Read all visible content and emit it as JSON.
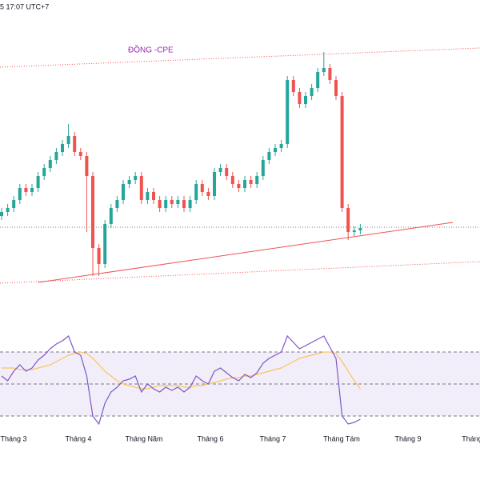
{
  "chart_data": {
    "type": "candlestick",
    "top_text": "5 17:07 UTC+7",
    "annotation": "ĐỒNG -CPE",
    "x_labels": [
      "Tháng 3",
      "Tháng 4",
      "Tháng Năm",
      "Tháng 6",
      "Tháng 7",
      "Tháng Tám",
      "Tháng 9",
      "Tháng"
    ],
    "ylim": [
      0,
      400
    ],
    "up_color": "#26a69a",
    "down_color": "#ef5350",
    "open": [
      130,
      135,
      140,
      150,
      165,
      160,
      165,
      180,
      190,
      200,
      210,
      220,
      230,
      210,
      205,
      180,
      90,
      70,
      120,
      140,
      150,
      170,
      175,
      180,
      150,
      160,
      150,
      140,
      150,
      145,
      150,
      140,
      150,
      170,
      160,
      155,
      185,
      190,
      180,
      170,
      165,
      175,
      170,
      180,
      200,
      210,
      215,
      220,
      300,
      285,
      270,
      280,
      290,
      310,
      315,
      300,
      280,
      140,
      110,
      112
    ],
    "high": [
      140,
      145,
      155,
      170,
      170,
      170,
      185,
      195,
      205,
      215,
      225,
      245,
      235,
      215,
      210,
      185,
      95,
      125,
      145,
      155,
      175,
      180,
      185,
      185,
      165,
      165,
      155,
      155,
      155,
      155,
      155,
      155,
      175,
      175,
      165,
      190,
      195,
      195,
      185,
      175,
      180,
      180,
      185,
      205,
      215,
      220,
      225,
      305,
      305,
      290,
      285,
      295,
      315,
      335,
      320,
      305,
      285,
      145,
      117,
      120
    ],
    "low": [
      125,
      130,
      135,
      145,
      155,
      155,
      160,
      175,
      185,
      195,
      205,
      215,
      205,
      200,
      110,
      55,
      55,
      65,
      115,
      135,
      145,
      165,
      170,
      145,
      145,
      145,
      135,
      135,
      140,
      140,
      135,
      135,
      145,
      155,
      150,
      150,
      180,
      175,
      165,
      160,
      160,
      165,
      165,
      175,
      195,
      205,
      210,
      215,
      280,
      265,
      265,
      275,
      285,
      305,
      295,
      275,
      135,
      100,
      105,
      107
    ],
    "close": [
      135,
      140,
      150,
      165,
      160,
      165,
      180,
      190,
      200,
      210,
      220,
      230,
      210,
      205,
      180,
      90,
      70,
      120,
      140,
      150,
      170,
      175,
      180,
      150,
      160,
      150,
      140,
      150,
      145,
      150,
      140,
      150,
      170,
      160,
      155,
      185,
      190,
      180,
      170,
      165,
      175,
      170,
      180,
      200,
      210,
      215,
      220,
      300,
      285,
      270,
      280,
      290,
      310,
      315,
      300,
      280,
      140,
      110,
      112,
      115
    ],
    "rsi_ylim": [
      20,
      85
    ],
    "rsi_levels": [
      70,
      50,
      30
    ],
    "rsi_color": "#7e57c2",
    "rsi_ma_color": "#f7c55f",
    "rsi": [
      55,
      52,
      58,
      62,
      58,
      60,
      65,
      68,
      72,
      75,
      77,
      80,
      70,
      68,
      55,
      30,
      25,
      38,
      45,
      48,
      52,
      53,
      55,
      45,
      50,
      47,
      45,
      48,
      46,
      48,
      45,
      48,
      55,
      52,
      50,
      58,
      60,
      57,
      54,
      52,
      56,
      54,
      57,
      63,
      66,
      68,
      70,
      80,
      76,
      72,
      74,
      76,
      78,
      80,
      73,
      66,
      30,
      25,
      26,
      28
    ],
    "rsi_ma": [
      60,
      60,
      60,
      59,
      59,
      59,
      60,
      61,
      62,
      64,
      66,
      68,
      69,
      70,
      69,
      66,
      62,
      58,
      55,
      52,
      50,
      49,
      48,
      47,
      47,
      48,
      49,
      49,
      49,
      49,
      48,
      48,
      49,
      49,
      50,
      51,
      52,
      53,
      54,
      54,
      55,
      55,
      56,
      57,
      58,
      59,
      60,
      62,
      64,
      66,
      67,
      68,
      69,
      70,
      70,
      69,
      64,
      58,
      52,
      47
    ]
  }
}
